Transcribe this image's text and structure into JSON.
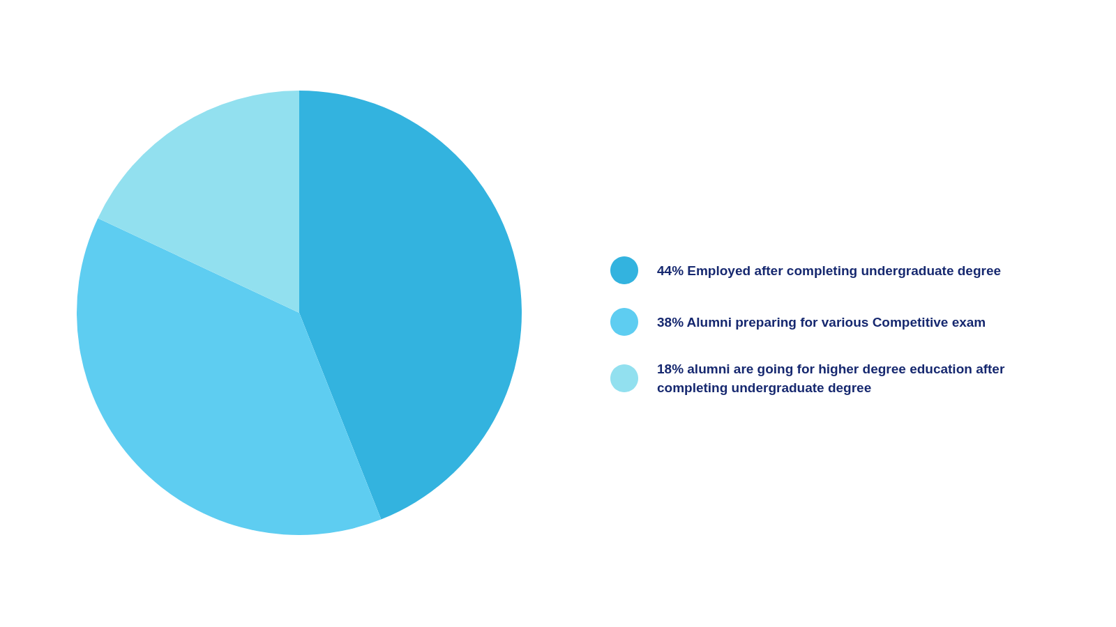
{
  "chart_data": {
    "type": "pie",
    "categories": [
      "44% Employed after completing undergraduate degree",
      "38% Alumni preparing for various Competitive exam",
      "18% alumni are going for higher degree education after completing undergraduate degree"
    ],
    "values": [
      44,
      38,
      18
    ],
    "colors": [
      "#33b3df",
      "#5ecdf1",
      "#92e0ef"
    ],
    "legend": "right"
  }
}
